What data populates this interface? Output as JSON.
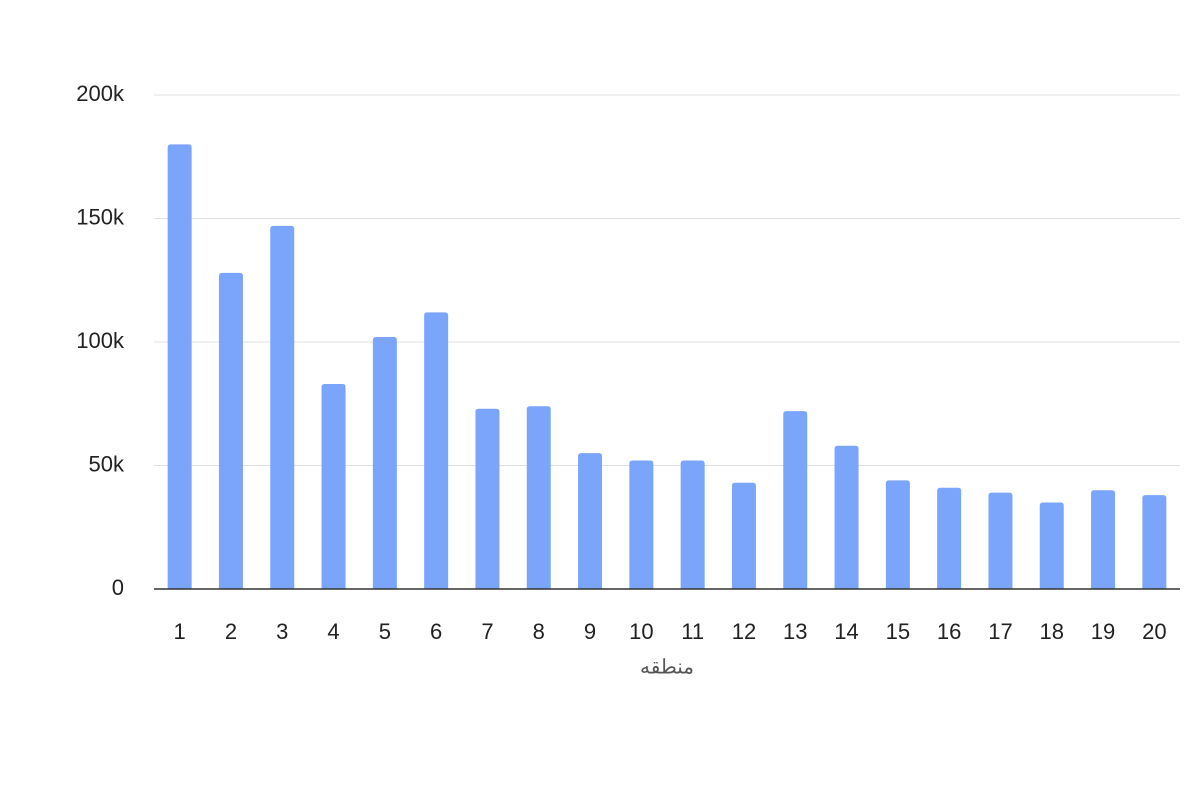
{
  "chart_data": {
    "type": "bar",
    "x_label": "منطقه",
    "categories": [
      "1",
      "2",
      "3",
      "4",
      "5",
      "6",
      "7",
      "8",
      "9",
      "10",
      "11",
      "12",
      "13",
      "14",
      "15",
      "16",
      "17",
      "18",
      "19",
      "20"
    ],
    "values": [
      180000,
      128000,
      147000,
      83000,
      102000,
      112000,
      73000,
      74000,
      55000,
      52000,
      52000,
      43000,
      72000,
      58000,
      44000,
      41000,
      39000,
      35000,
      40000,
      38000
    ],
    "color": "#7ba4fb",
    "ylim": [
      0,
      200000
    ],
    "yticks": [
      0,
      {
        "value": 50000,
        "label": "50k"
      },
      {
        "value": 100000,
        "label": "100k"
      },
      {
        "value": 150000,
        "label": "150k"
      },
      {
        "value": 200000,
        "label": "200k"
      }
    ],
    "grid": true
  }
}
